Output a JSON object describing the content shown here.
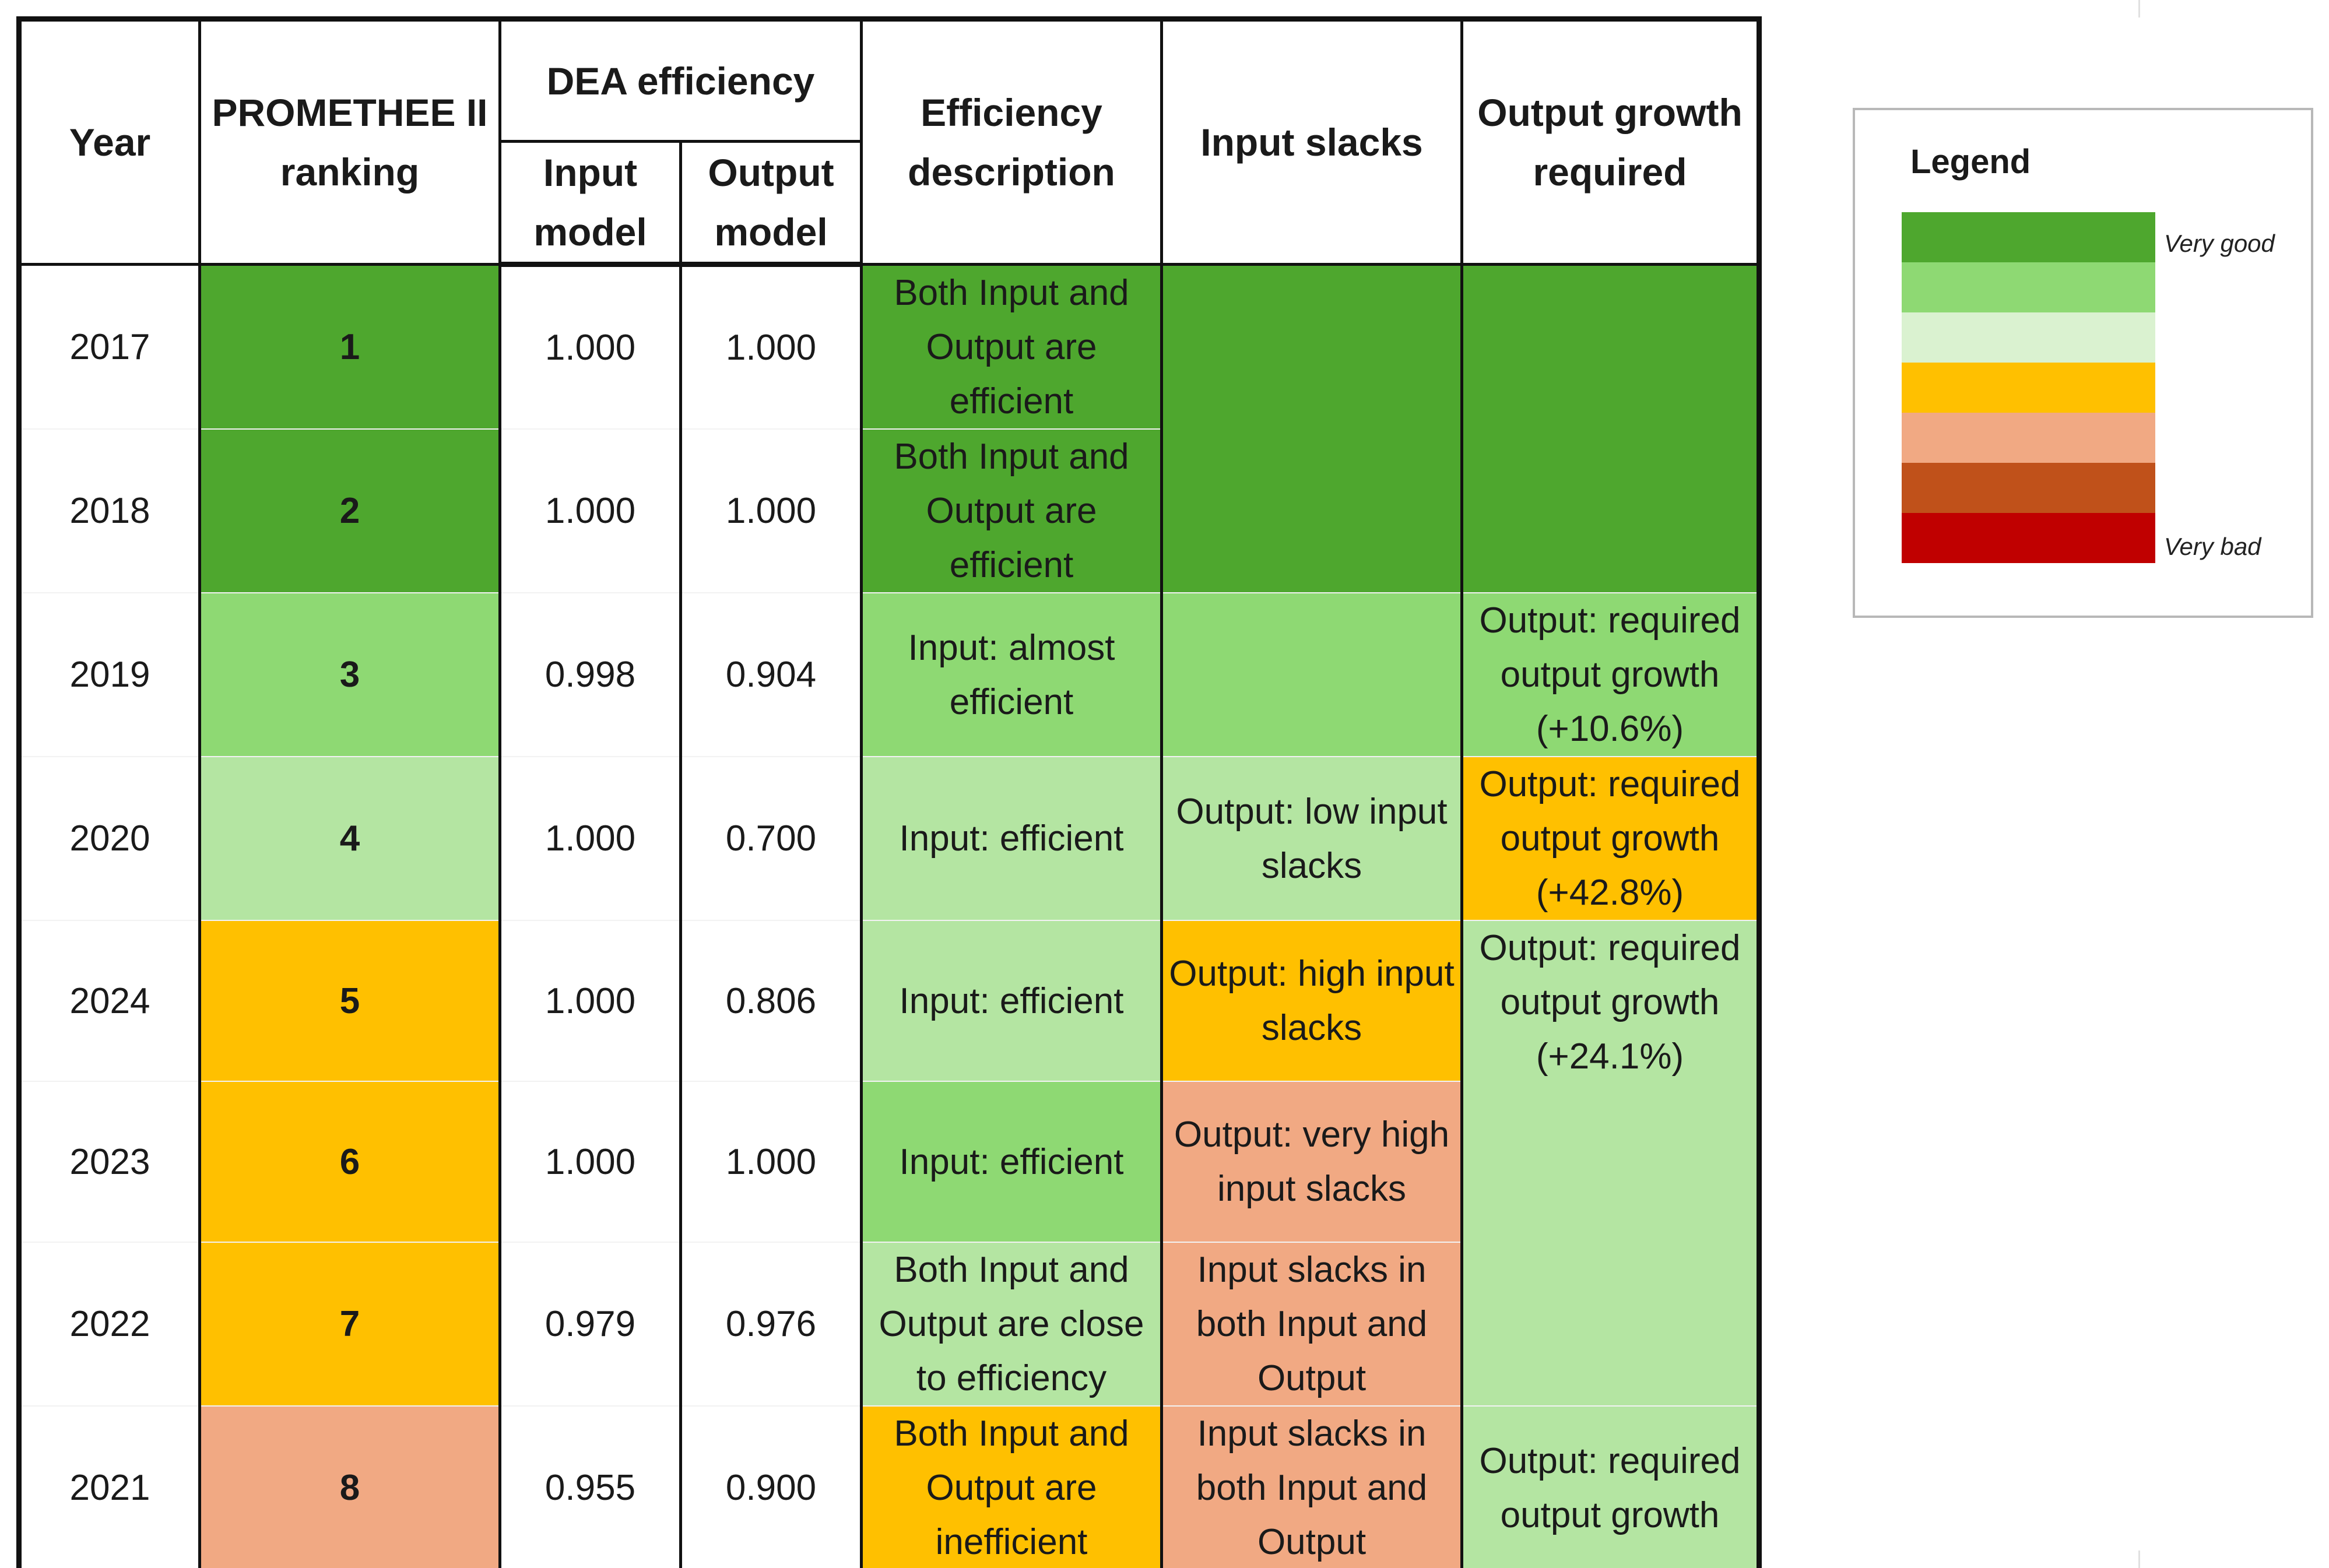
{
  "table": {
    "headers": {
      "year": "Year",
      "ranking": "PROMETHEE II ranking",
      "dea": "DEA efficiency",
      "input_model": "Input model",
      "output_model": "Output model",
      "description": "Efficiency description",
      "slacks": "Input slacks",
      "growth": "Output growth required"
    },
    "rows": [
      {
        "year": "2017",
        "rank": "1",
        "input": "1.000",
        "output": "1.000"
      },
      {
        "year": "2018",
        "rank": "2",
        "input": "1.000",
        "output": "1.000"
      },
      {
        "year": "2019",
        "rank": "3",
        "input": "0.998",
        "output": "0.904"
      },
      {
        "year": "2020",
        "rank": "4",
        "input": "1.000",
        "output": "0.700"
      },
      {
        "year": "2024",
        "rank": "5",
        "input": "1.000",
        "output": "0.806"
      },
      {
        "year": "2023",
        "rank": "6",
        "input": "1.000",
        "output": "1.000"
      },
      {
        "year": "2022",
        "rank": "7",
        "input": "0.979",
        "output": "0.976"
      },
      {
        "year": "2021",
        "rank": "8",
        "input": "0.955",
        "output": "0.900"
      }
    ],
    "descriptions": [
      "Both Input and Output are efficient",
      "Both Input and Output are efficient",
      "Input: almost efficient",
      "Input: efficient",
      "Input: efficient",
      "Input: efficient",
      "Both Input and Output are close to efficiency",
      "Both Input and Output are inefficient"
    ],
    "slacks": {
      "r2020": "Output: low input slacks",
      "r2024": "Output: high input slacks",
      "r2023": "Output: very high input slacks",
      "r2022": "Input slacks in both Input and Output",
      "r2021": "Input slacks in both Input and Output"
    },
    "growth": {
      "r2019": "Output: required output growth (+10.6%)",
      "r2020": "Output: required output growth (+42.8%)",
      "r2024": "Output: required output growth (+24.1%)",
      "r2021": "Output: required output growth"
    }
  },
  "legend": {
    "title": "Legend",
    "top_label": "Very good",
    "bottom_label": "Very bad",
    "colors": [
      "#4ea72e",
      "#8ed973",
      "#daf2d0",
      "#ffc000",
      "#f1a983",
      "#c0511a",
      "#c00000"
    ]
  },
  "colors": {
    "very_good": "#4ea72e",
    "good": "#8ed973",
    "light_good": "#b4e5a2",
    "yellow": "#ffc000",
    "orange": "#f1a983"
  }
}
